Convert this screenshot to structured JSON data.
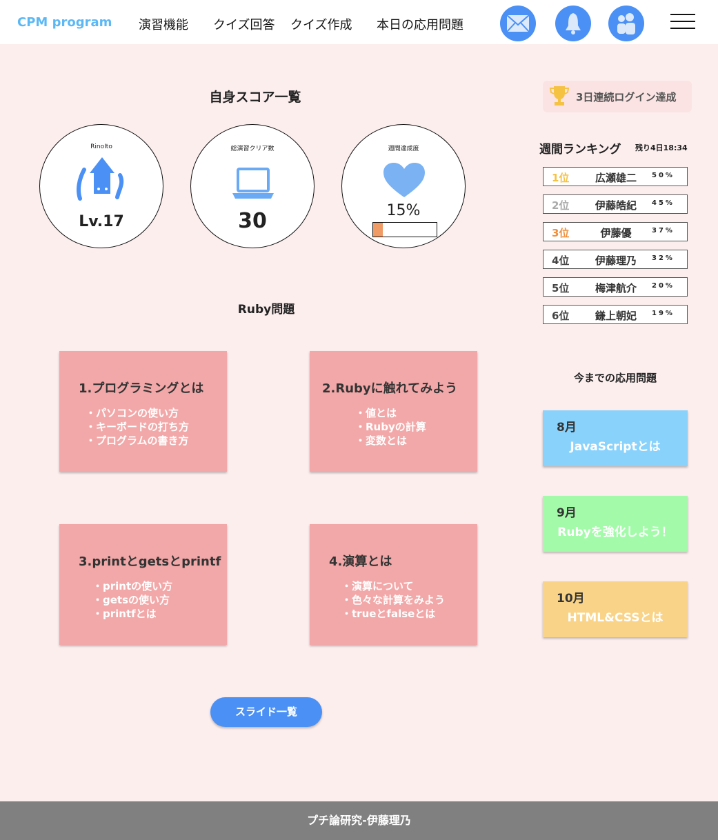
{
  "nav": {
    "brand": "CPM program",
    "links": [
      "演習機能",
      "クイズ回答",
      "クイズ作成",
      "本日の応用問題"
    ],
    "icons": [
      "mail-icon",
      "bell-icon",
      "users-icon",
      "hamburger-menu-icon"
    ]
  },
  "score": {
    "title": "自身スコア一覧",
    "user": {
      "name": "RinoIto",
      "level": "Lv.17"
    },
    "clear": {
      "label": "総演習クリア数",
      "value": "30"
    },
    "weekly": {
      "label": "週間達成度",
      "value": "15%",
      "progress": 15
    }
  },
  "ruby": {
    "title": "Ruby問題",
    "cards": [
      {
        "title": "1.プログラミングとは",
        "items": [
          "・パソコンの使い方",
          "・キーボードの打ち方",
          "・プログラムの書き方"
        ]
      },
      {
        "title": "2.Rubyに触れてみよう",
        "items": [
          "・値とは",
          "・Rubyの計算",
          "・変数とは"
        ]
      },
      {
        "title": "3.printとgetsとprintf",
        "items": [
          "・printの使い方",
          "・getsの使い方",
          "・printfとは"
        ]
      },
      {
        "title": "4.演算とは",
        "items": [
          "・演算について",
          "・色々な計算をみよう",
          "・trueとfalseとは"
        ]
      }
    ]
  },
  "slide_button": "スライド一覧",
  "achievement": "3日連続ログイン達成",
  "ranking": {
    "title": "週間ランキング",
    "remaining": "残り4日18:34",
    "rows": [
      {
        "place": "1位",
        "name": "広瀬雄二",
        "score": "50%",
        "color": "#f5c242"
      },
      {
        "place": "2位",
        "name": "伊藤皓紀",
        "score": "45%",
        "color": "#aaaaaa"
      },
      {
        "place": "3位",
        "name": "伊藤優",
        "score": "37%",
        "color": "#ef8f3c"
      },
      {
        "place": "4位",
        "name": "伊藤理乃",
        "score": "32%",
        "color": "#444444"
      },
      {
        "place": "5位",
        "name": "梅津航介",
        "score": "20%",
        "color": "#444444"
      },
      {
        "place": "6位",
        "name": "鎌上朝妃",
        "score": "19%",
        "color": "#444444"
      }
    ]
  },
  "past": {
    "title": "今までの応用問題",
    "items": [
      {
        "month": "8月",
        "title": "JavaScriptとは",
        "color": "#89d2fc"
      },
      {
        "month": "9月",
        "title": "Rubyを強化しよう！",
        "color": "#a3fba9"
      },
      {
        "month": "10月",
        "title": "HTML&CSSとは",
        "color": "#f9d488"
      }
    ]
  },
  "footer": "プチ論研究-伊藤理乃"
}
